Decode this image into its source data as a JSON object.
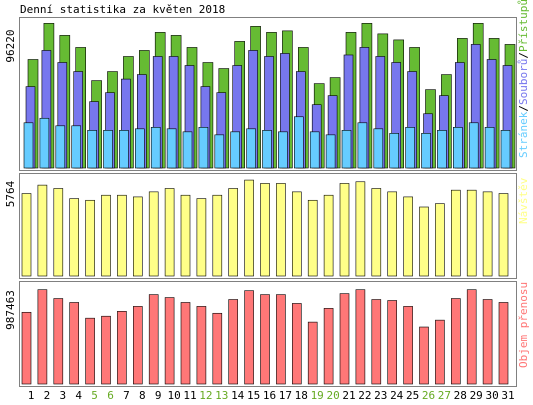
{
  "title": "Denní statistika za květen 2018",
  "colors": {
    "hits": "#66bb33",
    "files": "#7777ee",
    "pages": "#66ccff",
    "visits": "#ffff88",
    "kbytes": "#ff7777",
    "weekday": "#000000",
    "weekend": "#66aa22",
    "frame": "#808080"
  },
  "labels": {
    "top_left_max": "96220",
    "mid_left_max": "5764",
    "bot_left_max": "987463",
    "top_right_pages": "Stránek",
    "top_right_files": "Souborů",
    "top_right_hits": "Přístupů",
    "mid_right": "Návštěv",
    "bot_right": "Objem přenosu"
  },
  "chart_data": [
    {
      "type": "bar",
      "title": "Denní statistika za květen 2018",
      "categories": [
        "1",
        "2",
        "3",
        "4",
        "5",
        "6",
        "7",
        "8",
        "9",
        "10",
        "11",
        "12",
        "13",
        "14",
        "15",
        "16",
        "17",
        "18",
        "19",
        "20",
        "21",
        "22",
        "23",
        "24",
        "25",
        "26",
        "27",
        "28",
        "29",
        "30",
        "31"
      ],
      "weekend_days": [
        "5",
        "6",
        "12",
        "13",
        "19",
        "20",
        "26",
        "27"
      ],
      "ylim": [
        0,
        96220
      ],
      "series": [
        {
          "name": "Přístupů",
          "values": [
            72000,
            96000,
            88000,
            80000,
            58000,
            64000,
            74000,
            78000,
            90000,
            88000,
            80000,
            70000,
            66000,
            84000,
            94000,
            90000,
            91000,
            80000,
            56000,
            60000,
            90000,
            96000,
            89000,
            85000,
            80000,
            52000,
            62000,
            86000,
            96000,
            86000,
            82000
          ]
        },
        {
          "name": "Souborů",
          "values": [
            54000,
            78000,
            70000,
            64000,
            44000,
            50000,
            59000,
            62000,
            74000,
            74000,
            68000,
            54000,
            50000,
            68000,
            78000,
            74000,
            76000,
            64000,
            42000,
            48000,
            75000,
            80000,
            74000,
            70000,
            64000,
            36000,
            48000,
            70000,
            82000,
            72000,
            68000
          ]
        },
        {
          "name": "Stránek",
          "values": [
            30000,
            33000,
            28000,
            28000,
            25000,
            25000,
            25000,
            26000,
            27000,
            26000,
            24000,
            27000,
            22000,
            24000,
            26000,
            25000,
            24000,
            34000,
            24000,
            22000,
            25000,
            30000,
            26000,
            23000,
            27000,
            23000,
            25000,
            27000,
            30000,
            27000,
            25000
          ]
        }
      ]
    },
    {
      "type": "bar",
      "categories": [
        "1",
        "2",
        "3",
        "4",
        "5",
        "6",
        "7",
        "8",
        "9",
        "10",
        "11",
        "12",
        "13",
        "14",
        "15",
        "16",
        "17",
        "18",
        "19",
        "20",
        "21",
        "22",
        "23",
        "24",
        "25",
        "26",
        "27",
        "28",
        "29",
        "30",
        "31"
      ],
      "ylim": [
        0,
        5764
      ],
      "series": [
        {
          "name": "Návštěv",
          "values": [
            4900,
            5400,
            5200,
            4600,
            4500,
            4800,
            4800,
            4700,
            5000,
            5200,
            4800,
            4600,
            4800,
            5200,
            5700,
            5500,
            5500,
            5000,
            4500,
            4800,
            5500,
            5600,
            5200,
            5000,
            4700,
            4100,
            4300,
            5100,
            5100,
            5000,
            4900
          ]
        }
      ]
    },
    {
      "type": "bar",
      "categories": [
        "1",
        "2",
        "3",
        "4",
        "5",
        "6",
        "7",
        "8",
        "9",
        "10",
        "11",
        "12",
        "13",
        "14",
        "15",
        "16",
        "17",
        "18",
        "19",
        "20",
        "21",
        "22",
        "23",
        "24",
        "25",
        "26",
        "27",
        "28",
        "29",
        "30",
        "31"
      ],
      "ylim": [
        0,
        987463
      ],
      "series": [
        {
          "name": "Objem přenosu",
          "values": [
            730000,
            960000,
            870000,
            830000,
            670000,
            690000,
            740000,
            790000,
            910000,
            880000,
            830000,
            790000,
            720000,
            860000,
            950000,
            910000,
            910000,
            820000,
            630000,
            770000,
            920000,
            960000,
            860000,
            850000,
            790000,
            580000,
            650000,
            870000,
            960000,
            860000,
            830000
          ]
        }
      ]
    }
  ]
}
